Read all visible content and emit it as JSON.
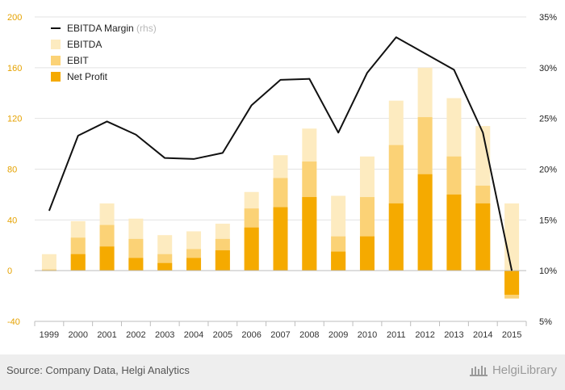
{
  "chart_data": {
    "type": "bar",
    "categories": [
      "1999",
      "2000",
      "2001",
      "2002",
      "2003",
      "2004",
      "2005",
      "2006",
      "2007",
      "2008",
      "2009",
      "2010",
      "2011",
      "2012",
      "2013",
      "2014",
      "2015"
    ],
    "series": [
      {
        "name": "EBITDA",
        "kind": "bar",
        "color": "#fdebc0",
        "values": [
          13,
          39,
          53,
          41,
          28,
          31,
          37,
          62,
          91,
          112,
          59,
          90,
          134,
          160,
          136,
          114,
          53
        ]
      },
      {
        "name": "EBIT",
        "kind": "bar",
        "color": "#fbd276",
        "values": [
          1,
          26,
          36,
          25,
          13,
          17,
          25,
          49,
          73,
          86,
          27,
          58,
          99,
          121,
          90,
          67,
          -22
        ]
      },
      {
        "name": "Net Profit",
        "kind": "bar",
        "color": "#f5aa00",
        "values": [
          0,
          13,
          19,
          10,
          6,
          10,
          16,
          34,
          50,
          58,
          15,
          27,
          53,
          76,
          60,
          53,
          -19
        ]
      },
      {
        "name": "EBITDA Margin",
        "name_suffix": "(rhs)",
        "kind": "line",
        "axis": "right",
        "color": "#111111",
        "values": [
          15.9,
          23.3,
          24.7,
          23.4,
          21.1,
          21.0,
          21.6,
          26.3,
          28.8,
          28.9,
          23.6,
          29.5,
          33.0,
          31.4,
          29.8,
          23.6,
          10.0
        ]
      }
    ],
    "y_left": {
      "lim": [
        -40,
        200
      ],
      "ticks": [
        "-40",
        "0",
        "40",
        "80",
        "120",
        "160",
        "200"
      ],
      "color": "#e5a200"
    },
    "y_right": {
      "lim": [
        5,
        35
      ],
      "ticks": [
        "5%",
        "10%",
        "15%",
        "20%",
        "25%",
        "30%",
        "35%"
      ]
    },
    "grid": true,
    "legend_position": "top-left"
  },
  "footer": {
    "source": "Source: Company Data, Helgi Analytics",
    "brand": "HelgiLibrary"
  }
}
